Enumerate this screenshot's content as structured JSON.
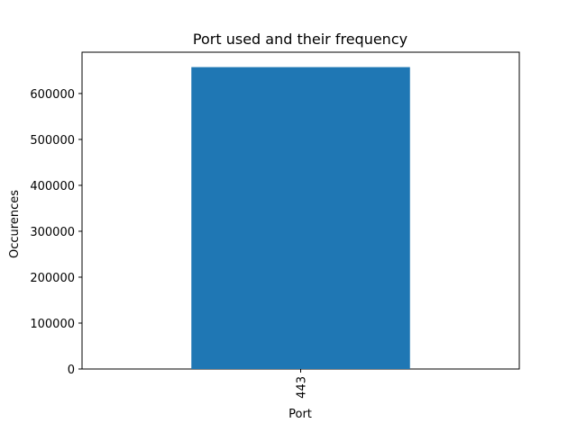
{
  "chart_data": {
    "type": "bar",
    "title": "Port used and their frequency",
    "xlabel": "Port",
    "ylabel": "Occurences",
    "categories": [
      "443"
    ],
    "values": [
      657500
    ],
    "ylim": [
      0,
      690000
    ],
    "yticks": [
      0,
      100000,
      200000,
      300000,
      400000,
      500000,
      600000
    ],
    "ytick_labels": [
      "0",
      "100000",
      "200000",
      "300000",
      "400000",
      "500000",
      "600000"
    ],
    "grid": false,
    "legend": "none",
    "bar_color": "#1f77b4",
    "xtick_rotation": "vertical"
  }
}
